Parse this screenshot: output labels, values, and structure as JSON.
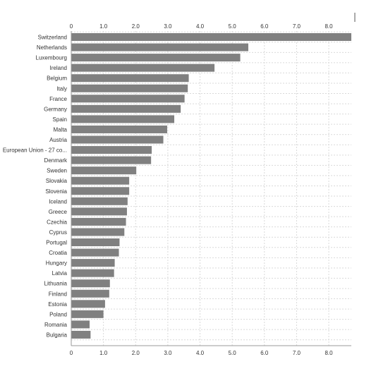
{
  "colors": {
    "bar": "#808080",
    "grid": "#d9d9d9",
    "axis": "#999999",
    "text": "#333333"
  },
  "chart_data": {
    "type": "bar",
    "orientation": "horizontal",
    "categories": [
      "Switzerland",
      "Netherlands",
      "Luxembourg",
      "Ireland",
      "Belgium",
      "Italy",
      "France",
      "Germany",
      "Spain",
      "Malta",
      "Austria",
      "European Union - 27 co...",
      "Denmark",
      "Sweden",
      "Slovakia",
      "Slovenia",
      "Iceland",
      "Greece",
      "Czechia",
      "Cyprus",
      "Portugal",
      "Croatia",
      "Hungary",
      "Latvia",
      "Lithuania",
      "Finland",
      "Estonia",
      "Poland",
      "Romania",
      "Bulgaria"
    ],
    "values": [
      8.7,
      5.5,
      5.25,
      4.45,
      3.65,
      3.62,
      3.52,
      3.4,
      3.2,
      2.98,
      2.86,
      2.5,
      2.48,
      2.02,
      1.8,
      1.8,
      1.75,
      1.73,
      1.7,
      1.65,
      1.5,
      1.48,
      1.35,
      1.33,
      1.2,
      1.18,
      1.05,
      1.0,
      0.57,
      0.6
    ],
    "xlim": [
      0,
      8.7
    ],
    "xticks": [
      "0",
      "1.0",
      "2.0",
      "3.0",
      "4.0",
      "5.0",
      "6.0",
      "7.0",
      "8.0"
    ],
    "tick_values": [
      0,
      1,
      2,
      3,
      4,
      5,
      6,
      7,
      8
    ],
    "grid": true,
    "legend": "none"
  }
}
